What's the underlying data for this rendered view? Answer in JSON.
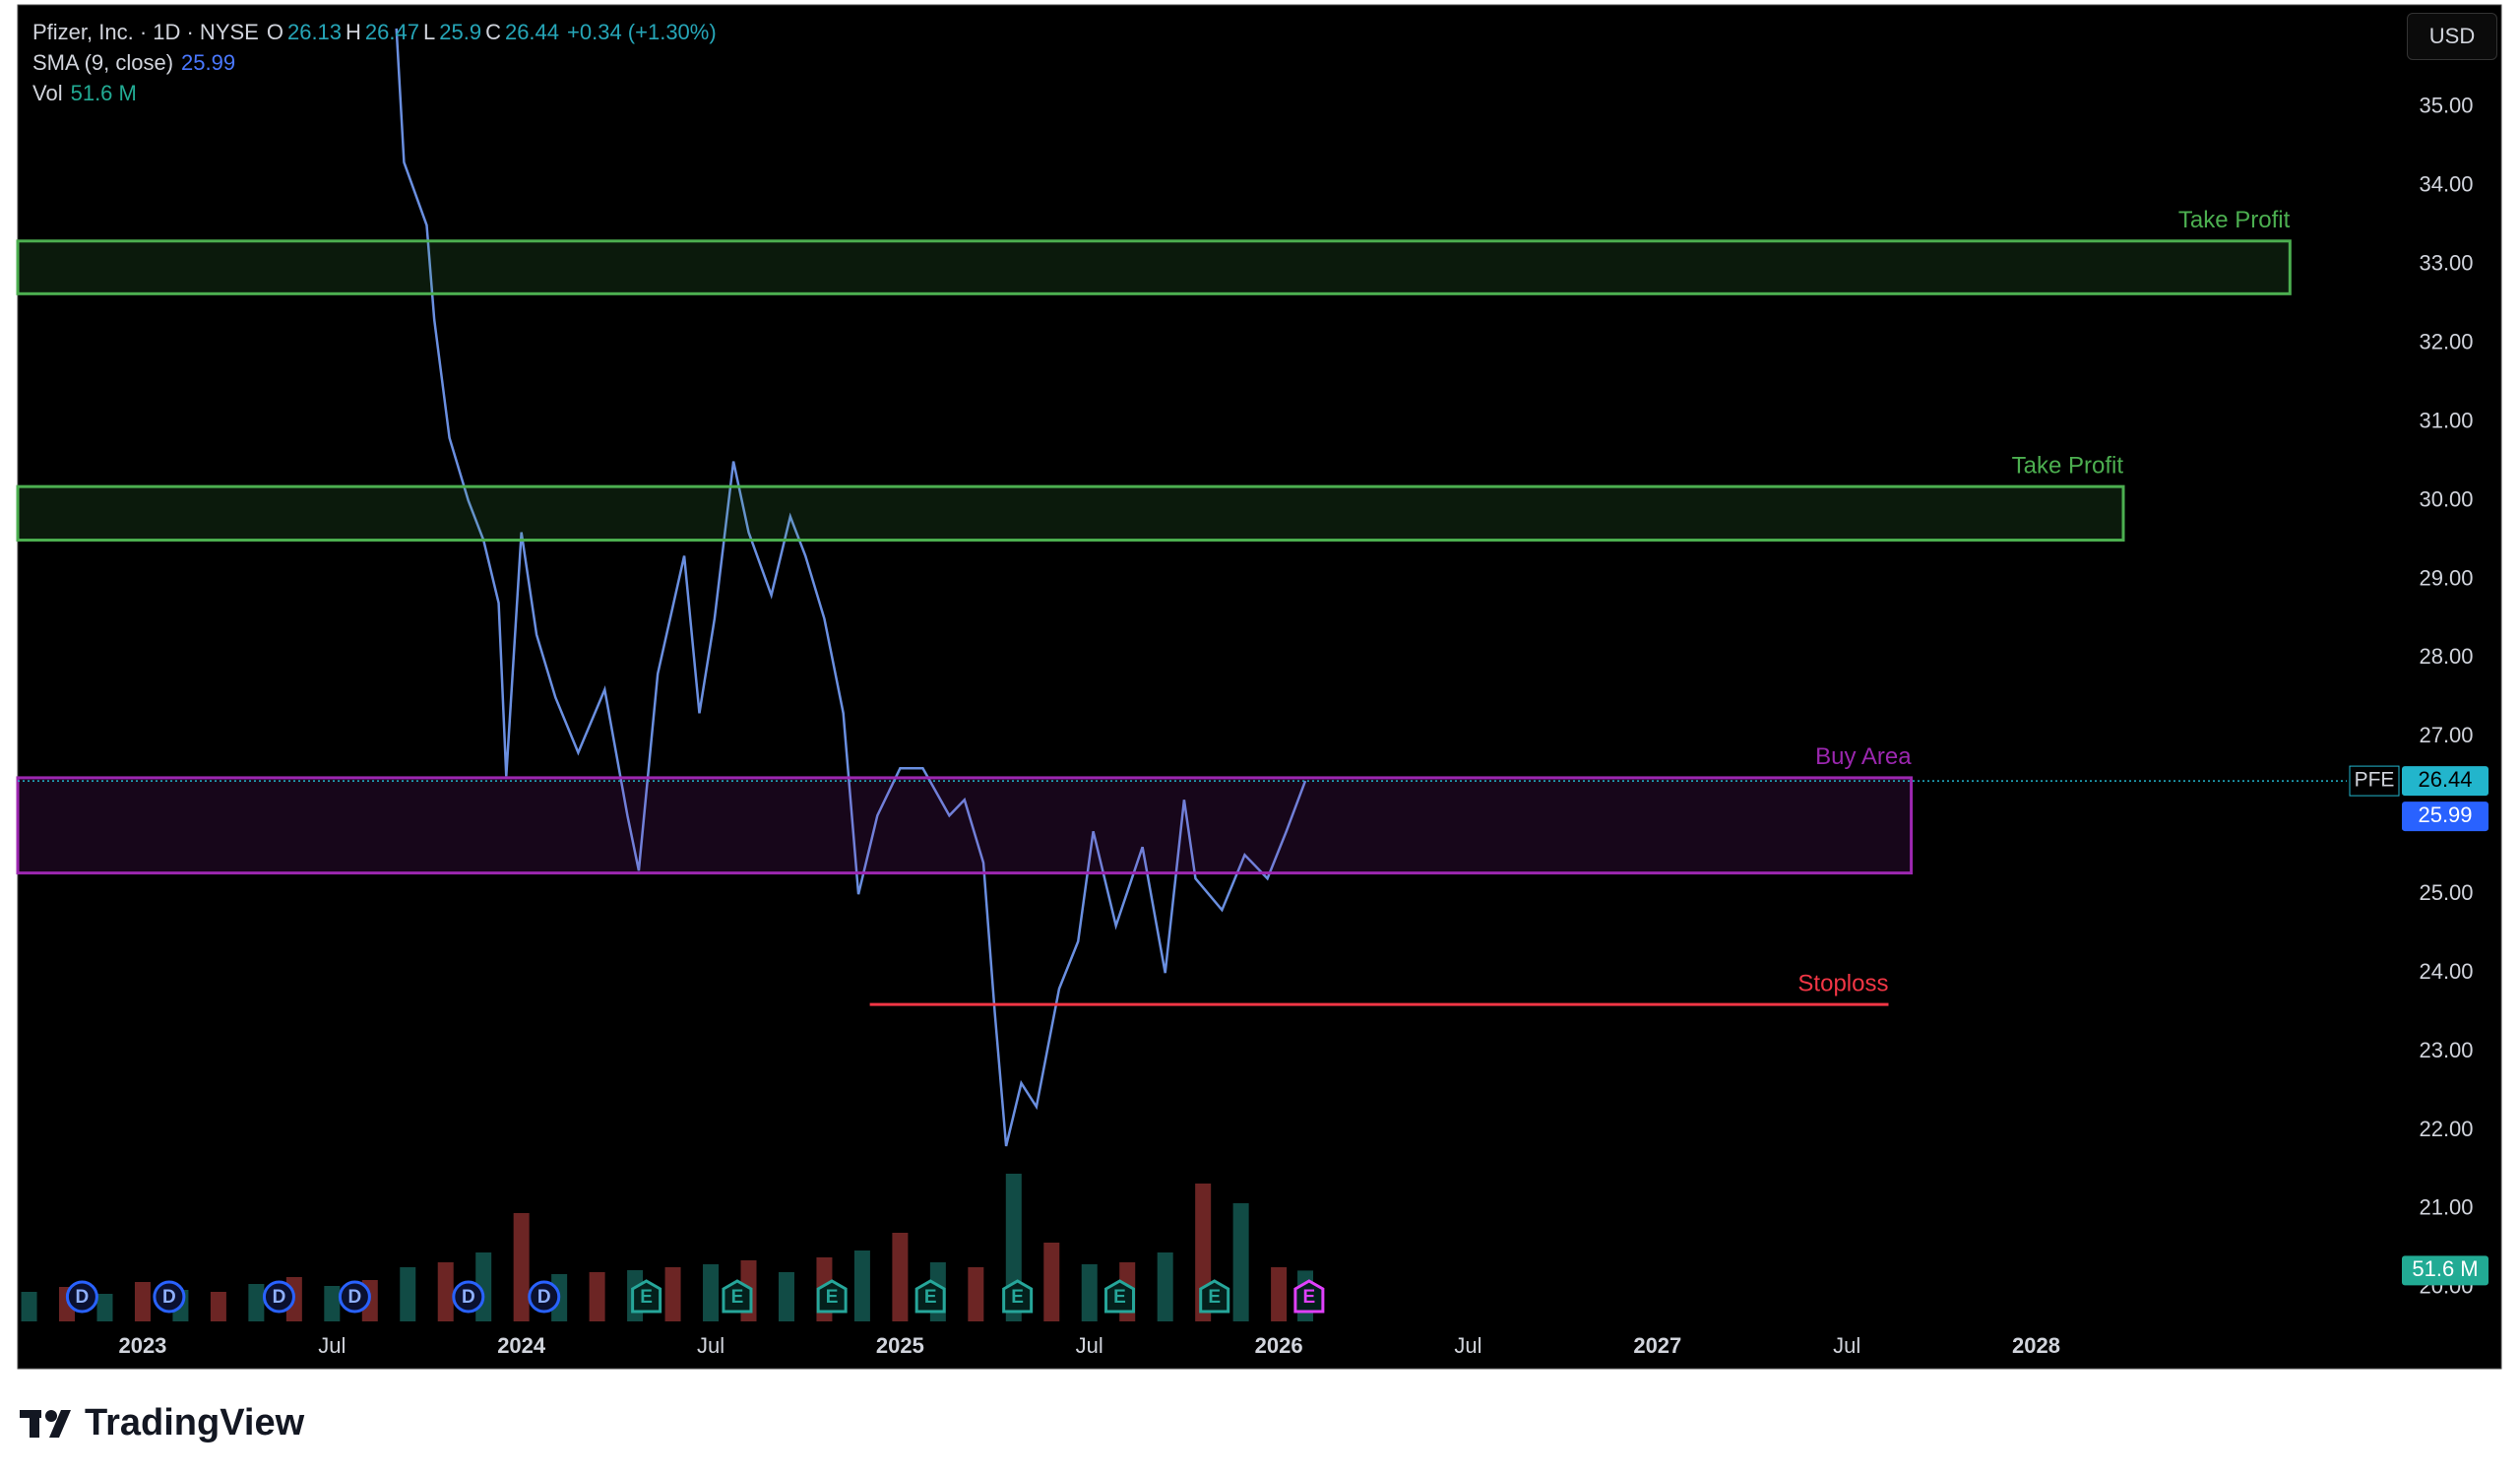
{
  "chart_data": {
    "type": "line",
    "title": "Pfizer, Inc. · 1D · NYSE",
    "ohlc": [
      {
        "label": "O",
        "value": 26.13
      },
      {
        "label": "H",
        "value": 26.47
      },
      {
        "label": "L",
        "value": 25.9
      },
      {
        "label": "C",
        "value": 26.44
      }
    ],
    "change": "+0.34 (+1.30%)",
    "sma_label": "SMA (9, close)",
    "sma_value": 25.99,
    "volume_label": "Vol",
    "last_volume": {
      "value": 51.6,
      "label": "51.6 M"
    },
    "currency": "USD",
    "symbol": "PFE",
    "last_price": 26.44,
    "xlim": [
      2022.67,
      2028.82
    ],
    "ylim": [
      19.51,
      36.3
    ],
    "xticks": [
      2023,
      {
        "value": 2023.5,
        "label": "Jul"
      },
      2024,
      {
        "value": 2024.5,
        "label": "Jul"
      },
      2025,
      {
        "value": 2025.5,
        "label": "Jul"
      },
      2026,
      {
        "value": 2026.5,
        "label": "Jul"
      },
      2027,
      {
        "value": 2027.5,
        "label": "Jul"
      },
      2028
    ],
    "yticks": [
      {
        "value": 20,
        "label": "20.00"
      },
      {
        "value": 21,
        "label": "21.00"
      },
      {
        "value": 22,
        "label": "22.00"
      },
      {
        "value": 23,
        "label": "23.00"
      },
      {
        "value": 24,
        "label": "24.00"
      },
      {
        "value": 25,
        "label": "25.00"
      },
      {
        "value": 26,
        "label": "26.00"
      },
      {
        "value": 27,
        "label": "27.00"
      },
      {
        "value": 28,
        "label": "28.00"
      },
      {
        "value": 29,
        "label": "29.00"
      },
      {
        "value": 30,
        "label": "30.00"
      },
      {
        "value": 31,
        "label": "31.00"
      },
      {
        "value": 32,
        "label": "32.00"
      },
      {
        "value": 33,
        "label": "33.00"
      },
      {
        "value": 34,
        "label": "34.00"
      },
      {
        "value": 35,
        "label": "35.00"
      }
    ],
    "x": [
      2023.67,
      2023.69,
      2023.75,
      2023.77,
      2023.81,
      2023.86,
      2023.9,
      2023.94,
      2023.96,
      2024.0,
      2024.04,
      2024.09,
      2024.15,
      2024.22,
      2024.28,
      2024.31,
      2024.36,
      2024.43,
      2024.47,
      2024.51,
      2024.56,
      2024.6,
      2024.66,
      2024.71,
      2024.75,
      2024.8,
      2024.85,
      2024.89,
      2024.94,
      2025.0,
      2025.06,
      2025.13,
      2025.17,
      2025.22,
      2025.25,
      2025.28,
      2025.32,
      2025.36,
      2025.42,
      2025.47,
      2025.51,
      2025.57,
      2025.64,
      2025.7,
      2025.75,
      2025.78,
      2025.85,
      2025.91,
      2025.97,
      2026.02,
      2026.07
    ],
    "series": [
      {
        "color": "#6a8fe0",
        "values": [
          36.0,
          34.3,
          33.5,
          32.3,
          30.8,
          30.0,
          29.5,
          28.7,
          26.5,
          29.6,
          28.3,
          27.5,
          26.8,
          27.6,
          26.0,
          25.3,
          27.8,
          29.3,
          27.3,
          28.5,
          30.5,
          29.6,
          28.8,
          29.8,
          29.3,
          28.5,
          27.3,
          25.0,
          26.0,
          26.6,
          26.6,
          26.0,
          26.2,
          25.4,
          23.5,
          21.8,
          22.6,
          22.3,
          23.8,
          24.4,
          25.8,
          24.6,
          25.6,
          24.0,
          26.2,
          25.2,
          24.8,
          25.5,
          25.2,
          25.8,
          26.44
        ]
      }
    ],
    "volume": {
      "ylim": [
        0,
        330
      ],
      "x": [
        2022.7,
        2022.8,
        2022.9,
        2023.0,
        2023.1,
        2023.2,
        2023.3,
        2023.4,
        2023.5,
        2023.6,
        2023.7,
        2023.8,
        2023.9,
        2024.0,
        2024.1,
        2024.2,
        2024.3,
        2024.4,
        2024.5,
        2024.6,
        2024.7,
        2024.8,
        2024.9,
        2025.0,
        2025.1,
        2025.2,
        2025.3,
        2025.4,
        2025.5,
        2025.6,
        2025.7,
        2025.8,
        2025.9,
        2026.0,
        2026.07
      ],
      "values": [
        30,
        35,
        28,
        40,
        32,
        30,
        38,
        45,
        36,
        42,
        55,
        60,
        70,
        110,
        48,
        50,
        52,
        55,
        58,
        62,
        50,
        65,
        72,
        90,
        60,
        55,
        150,
        80,
        58,
        60,
        70,
        140,
        120,
        55,
        51.6
      ]
    },
    "annotations": [
      {
        "label": "Take Profit",
        "kind": "zone",
        "x": [
          2022.67,
          2028.67
        ],
        "top": 33.3,
        "bottom": 32.63,
        "color": "#4caf50"
      },
      {
        "label": "Take Profit",
        "kind": "zone",
        "x": [
          2022.67,
          2028.23
        ],
        "top": 30.18,
        "bottom": 29.5,
        "color": "#4caf50"
      },
      {
        "label": "Buy Area",
        "kind": "zone",
        "x": [
          2022.67,
          2027.67
        ],
        "top": 26.48,
        "bottom": 25.27,
        "color": "#9c27b0"
      },
      {
        "label": "Stoploss",
        "kind": "line",
        "x": [
          2024.92,
          2027.61
        ],
        "top": 23.6,
        "bottom": 23.6,
        "color": "#f23645"
      }
    ],
    "events": [
      {
        "x": 2022.84,
        "label": "D",
        "color": "#2962ff"
      },
      {
        "x": 2023.07,
        "label": "D",
        "color": "#2962ff"
      },
      {
        "x": 2023.36,
        "label": "D",
        "color": "#2962ff"
      },
      {
        "x": 2023.56,
        "label": "D",
        "color": "#2962ff"
      },
      {
        "x": 2023.86,
        "label": "D",
        "color": "#2962ff"
      },
      {
        "x": 2024.06,
        "label": "D",
        "color": "#2962ff"
      },
      {
        "x": 2024.33,
        "label": "E",
        "color": "#26a69a"
      },
      {
        "x": 2024.57,
        "label": "E",
        "color": "#26a69a"
      },
      {
        "x": 2024.82,
        "label": "E",
        "color": "#26a69a"
      },
      {
        "x": 2025.08,
        "label": "E",
        "color": "#26a69a"
      },
      {
        "x": 2025.31,
        "label": "E",
        "color": "#26a69a"
      },
      {
        "x": 2025.58,
        "label": "E",
        "color": "#26a69a"
      },
      {
        "x": 2025.83,
        "label": "E",
        "color": "#26a69a"
      },
      {
        "x": 2026.08,
        "label": "E",
        "color": "#e040fb"
      }
    ]
  },
  "brand": "TradingView"
}
